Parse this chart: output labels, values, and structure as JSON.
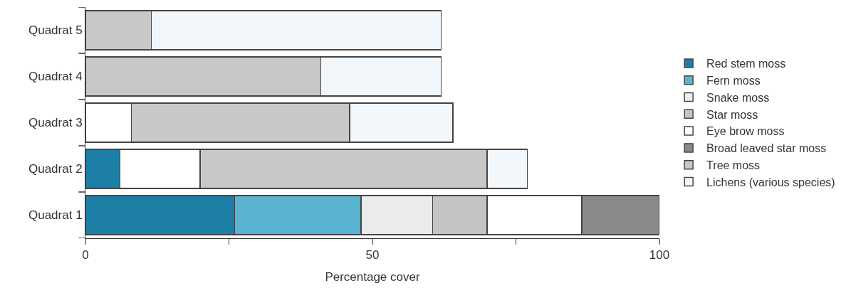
{
  "chart_data": {
    "type": "bar",
    "orientation": "horizontal",
    "stacked": true,
    "xlabel": "Percentage cover",
    "categories": [
      "Quadrat 5",
      "Quadrat 4",
      "Quadrat 3",
      "Quadrat 2",
      "Quadrat 1"
    ],
    "series": [
      {
        "name": "Red stem moss",
        "color": "#1e7fa6",
        "values": [
          null,
          null,
          null,
          6,
          26
        ]
      },
      {
        "name": "Fern moss",
        "color": "#5ab3d0",
        "values": [
          null,
          null,
          null,
          null,
          22
        ]
      },
      {
        "name": "Snake moss",
        "color": "#ebebeb",
        "values": [
          null,
          null,
          null,
          null,
          12.5
        ]
      },
      {
        "name": "Star moss",
        "color": "#c4c4c4",
        "values": [
          null,
          null,
          null,
          null,
          9.5
        ]
      },
      {
        "name": "Eye brow moss",
        "color": "#ffffff",
        "values": [
          null,
          null,
          8,
          14,
          16.5
        ]
      },
      {
        "name": "Broad leaved star moss",
        "color": "#8a8a8a",
        "values": [
          null,
          null,
          null,
          null,
          13.5
        ]
      },
      {
        "name": "Tree moss",
        "color": "#c8c8c8",
        "values": [
          11.5,
          41,
          38,
          50,
          null
        ]
      },
      {
        "name": "Lichens (various species)",
        "color": "#f2f7fb",
        "values": [
          50.5,
          21,
          18,
          7,
          null
        ]
      }
    ],
    "xlim": [
      0,
      100
    ],
    "xticks": [
      0,
      {
        "value": 25,
        "label": null
      },
      50,
      {
        "value": 75,
        "label": null
      },
      100
    ],
    "legend": "right"
  }
}
